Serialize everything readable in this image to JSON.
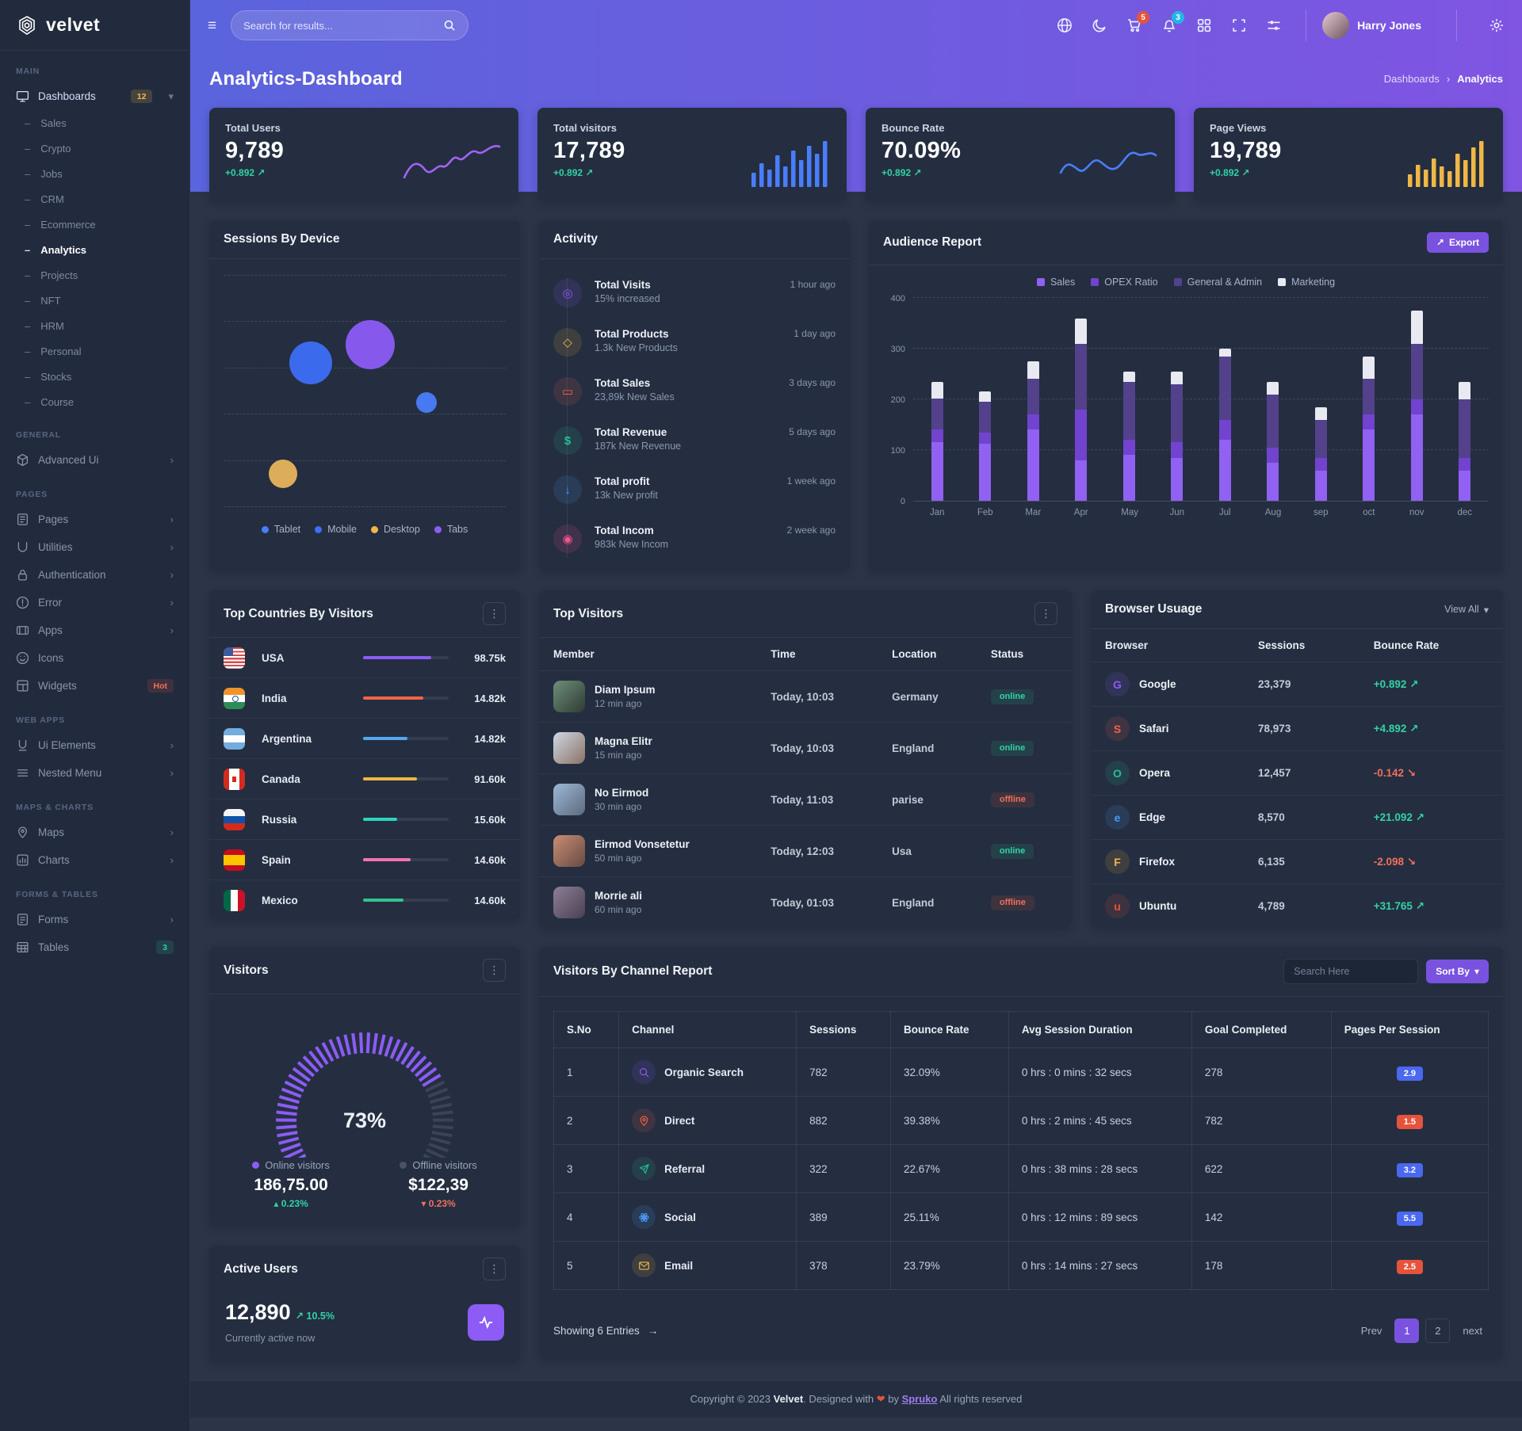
{
  "brand": {
    "name": "velvet"
  },
  "topbar": {
    "search_placeholder": "Search for results...",
    "cart_badge": "5",
    "bell_badge": "3",
    "user_name": "Harry Jones"
  },
  "page": {
    "title": "Analytics-Dashboard"
  },
  "breadcrumb": {
    "parent": "Dashboards",
    "current": "Analytics"
  },
  "sidebar": {
    "sections": [
      {
        "label": "MAIN",
        "items": [
          {
            "icon": "monitor",
            "label": "Dashboards",
            "badge": "12",
            "badge_variant": "warn",
            "chevron": "down",
            "active": true,
            "children": [
              "Sales",
              "Crypto",
              "Jobs",
              "CRM",
              "Ecommerce",
              "Analytics",
              "Projects",
              "NFT",
              "HRM",
              "Personal",
              "Stocks",
              "Course"
            ],
            "active_child": "Analytics"
          }
        ]
      },
      {
        "label": "GENERAL",
        "items": [
          {
            "icon": "box",
            "label": "Advanced Ui",
            "chevron": "right"
          }
        ]
      },
      {
        "label": "PAGES",
        "items": [
          {
            "icon": "file",
            "label": "Pages",
            "chevron": "right"
          },
          {
            "icon": "util",
            "label": "Utilities",
            "chevron": "right"
          },
          {
            "icon": "lock",
            "label": "Authentication",
            "chevron": "right"
          },
          {
            "icon": "error",
            "label": "Error",
            "chevron": "right"
          },
          {
            "icon": "apps",
            "label": "Apps",
            "chevron": "right"
          },
          {
            "icon": "smiley",
            "label": "Icons"
          },
          {
            "icon": "widget",
            "label": "Widgets",
            "badge": "Hot",
            "badge_variant": "danger"
          }
        ]
      },
      {
        "label": "WEB APPS",
        "items": [
          {
            "icon": "uline",
            "label": "Ui Elements",
            "chevron": "right"
          },
          {
            "icon": "menu3",
            "label": "Nested Menu",
            "chevron": "right"
          }
        ]
      },
      {
        "label": "MAPS & CHARTS",
        "items": [
          {
            "icon": "map",
            "label": "Maps",
            "chevron": "right"
          },
          {
            "icon": "chart",
            "label": "Charts",
            "chevron": "right"
          }
        ]
      },
      {
        "label": "FORMS & TABLES",
        "items": [
          {
            "icon": "form",
            "label": "Forms",
            "chevron": "right"
          },
          {
            "icon": "table",
            "label": "Tables",
            "badge": "3",
            "badge_variant": "success"
          }
        ]
      }
    ]
  },
  "stat_cards": [
    {
      "label": "Total Users",
      "value": "9,789",
      "delta": "+0.892",
      "spark": "line",
      "color": "#a263f5"
    },
    {
      "label": "Total visitors",
      "value": "17,789",
      "delta": "+0.892",
      "spark": "bars",
      "color": "#4a7dfc"
    },
    {
      "label": "Bounce Rate",
      "value": "70.09%",
      "delta": "+0.892",
      "spark": "line2",
      "color": "#4a7dfc"
    },
    {
      "label": "Page Views",
      "value": "19,789",
      "delta": "+0.892",
      "spark": "bars2",
      "color": "#f0b746"
    }
  ],
  "sessions": {
    "title": "Sessions By Device",
    "legend": [
      {
        "label": "Tablet",
        "color": "#4a7dfc"
      },
      {
        "label": "Mobile",
        "color": "#3d6ef5"
      },
      {
        "label": "Desktop",
        "color": "#f0b746"
      },
      {
        "label": "Tabs",
        "color": "#8c5cf5"
      }
    ],
    "bubbles": [
      {
        "series": "Mobile",
        "x": 31,
        "y": 38,
        "r": 27,
        "color": "#3d6ef5"
      },
      {
        "series": "Tabs",
        "x": 52,
        "y": 30,
        "r": 31,
        "color": "#8c5cf5"
      },
      {
        "series": "Tablet",
        "x": 72,
        "y": 55,
        "r": 13,
        "color": "#4a7dfc"
      },
      {
        "series": "Desktop",
        "x": 21,
        "y": 86,
        "r": 18,
        "color": "#e8b45c"
      }
    ]
  },
  "activity": {
    "title": "Activity",
    "items": [
      {
        "icon": "target",
        "glyph": "◎",
        "color": "#8c5cf5",
        "title": "Total Visits",
        "sub": "15% increased",
        "time": "1 hour ago"
      },
      {
        "icon": "box",
        "glyph": "◇",
        "color": "#f0b746",
        "title": "Total Products",
        "sub": "1.3k New Products",
        "time": "1 day ago"
      },
      {
        "icon": "card",
        "glyph": "▭",
        "color": "#f06548",
        "title": "Total Sales",
        "sub": "23,89k New Sales",
        "time": "3 days ago"
      },
      {
        "icon": "dollar",
        "glyph": "$",
        "color": "#26bf94",
        "title": "Total Revenue",
        "sub": "187k New Revenue",
        "time": "5 days ago"
      },
      {
        "icon": "download",
        "glyph": "↓",
        "color": "#4a9af5",
        "title": "Total profit",
        "sub": "13k New profit",
        "time": "1 week ago"
      },
      {
        "icon": "record",
        "glyph": "◉",
        "color": "#f5548e",
        "title": "Total Incom",
        "sub": "983k New Incom",
        "time": "2 week ago"
      }
    ]
  },
  "audience": {
    "title": "Audience Report",
    "export_label": "Export",
    "chart_data": {
      "type": "bar",
      "stacked": true,
      "categories": [
        "Jan",
        "Feb",
        "Mar",
        "Apr",
        "May",
        "Jun",
        "Jul",
        "Aug",
        "sep",
        "oct",
        "nov",
        "dec"
      ],
      "series": [
        {
          "name": "Sales",
          "color": "#9061f2",
          "values": [
            115,
            112,
            140,
            80,
            90,
            85,
            120,
            75,
            60,
            140,
            170,
            60
          ]
        },
        {
          "name": "OPEX Ratio",
          "color": "#7143cf",
          "values": [
            25,
            22,
            30,
            100,
            30,
            30,
            40,
            30,
            25,
            30,
            30,
            25
          ]
        },
        {
          "name": "General & Admin",
          "color": "#53418c",
          "values": [
            62,
            62,
            70,
            130,
            115,
            115,
            125,
            105,
            75,
            70,
            110,
            115
          ]
        },
        {
          "name": "Marketing",
          "color": "#e9e9f2",
          "values": [
            33,
            20,
            35,
            50,
            20,
            25,
            15,
            25,
            25,
            45,
            65,
            35
          ]
        }
      ],
      "ylim": [
        0,
        400
      ],
      "yticks": [
        0,
        100,
        200,
        300,
        400
      ],
      "grid": "dashed-horizontal",
      "legend_position": "top"
    }
  },
  "countries": {
    "title": "Top Countries By Visitors",
    "rows": [
      {
        "country": "USA",
        "flag": "usa",
        "value": "98.75k",
        "bar_pct": 80,
        "bar_color": "#8c5cf5"
      },
      {
        "country": "India",
        "flag": "india",
        "value": "14.82k",
        "bar_pct": 70,
        "bar_color": "#f06548"
      },
      {
        "country": "Argentina",
        "flag": "argentina",
        "value": "14.82k",
        "bar_pct": 52,
        "bar_color": "#53a8f0"
      },
      {
        "country": "Canada",
        "flag": "canada",
        "value": "91.60k",
        "bar_pct": 63,
        "bar_color": "#f0b746"
      },
      {
        "country": "Russia",
        "flag": "russia",
        "value": "15.60k",
        "bar_pct": 40,
        "bar_color": "#2dd4bf"
      },
      {
        "country": "Spain",
        "flag": "spain",
        "value": "14.60k",
        "bar_pct": 56,
        "bar_color": "#f472b6"
      },
      {
        "country": "Mexico",
        "flag": "mexico",
        "value": "14.60k",
        "bar_pct": 47,
        "bar_color": "#34c38f"
      }
    ]
  },
  "top_visitors": {
    "title": "Top Visitors",
    "headers": [
      "Member",
      "Time",
      "Location",
      "Status"
    ],
    "rows": [
      {
        "name": "Diam Ipsum",
        "ago": "12 min ago",
        "time": "Today, 10:03",
        "location": "Germany",
        "status": "online"
      },
      {
        "name": "Magna Elitr",
        "ago": "15 min ago",
        "time": "Today, 10:03",
        "location": "England",
        "status": "online"
      },
      {
        "name": "No Eirmod",
        "ago": "30 min ago",
        "time": "Today, 11:03",
        "location": "parise",
        "status": "offline"
      },
      {
        "name": "Eirmod Vonsetetur",
        "ago": "50 min ago",
        "time": "Today, 12:03",
        "location": "Usa",
        "status": "online"
      },
      {
        "name": "Morrie ali",
        "ago": "60 min ago",
        "time": "Today, 01:03",
        "location": "England",
        "status": "offline"
      }
    ]
  },
  "browser": {
    "title": "Browser Usuage",
    "view_all": "View All",
    "headers": [
      "Browser",
      "Sessions",
      "Bounce Rate"
    ],
    "rows": [
      {
        "name": "Google",
        "letter": "G",
        "color": "#8c5cf5",
        "sessions": "23,379",
        "bounce": "+0.892",
        "dir": "up"
      },
      {
        "name": "Safari",
        "letter": "S",
        "color": "#f06548",
        "sessions": "78,973",
        "bounce": "+4.892",
        "dir": "up"
      },
      {
        "name": "Opera",
        "letter": "O",
        "color": "#26bf94",
        "sessions": "12,457",
        "bounce": "-0.142",
        "dir": "down"
      },
      {
        "name": "Edge",
        "letter": "e",
        "color": "#4a9af5",
        "sessions": "8,570",
        "bounce": "+21.092",
        "dir": "up"
      },
      {
        "name": "Firefox",
        "letter": "F",
        "color": "#f0b746",
        "sessions": "6,135",
        "bounce": "-2.098",
        "dir": "down"
      },
      {
        "name": "Ubuntu",
        "letter": "u",
        "color": "#e6533c",
        "sessions": "4,789",
        "bounce": "+31.765",
        "dir": "up"
      }
    ]
  },
  "visitors_gauge": {
    "title": "Visitors",
    "percent": 73,
    "percent_label": "73%",
    "online": {
      "label": "Online visitors",
      "value": "186,75.00",
      "delta": "0.23%",
      "dir": "up",
      "dot_color": "#8c5cf5"
    },
    "offline": {
      "label": "Offline visitors",
      "value": "$122,39",
      "delta": "0.23%",
      "dir": "down",
      "dot_color": "#4a5268"
    }
  },
  "channel": {
    "title": "Visitors By Channel Report",
    "search_placeholder": "Search Here",
    "sort_label": "Sort By",
    "headers": [
      "S.No",
      "Channel",
      "Sessions",
      "Bounce Rate",
      "Avg Session Duration",
      "Goal Completed",
      "Pages Per Session"
    ],
    "rows": [
      {
        "no": "1",
        "channel": "Organic Search",
        "icon": "search",
        "color": "#8c5cf5",
        "sessions": "782",
        "bounce": "32.09%",
        "duration": "0 hrs : 0 mins : 32 secs",
        "goal": "278",
        "pps": "2.9",
        "pps_variant": "blue"
      },
      {
        "no": "2",
        "channel": "Direct",
        "icon": "pin",
        "color": "#f06548",
        "sessions": "882",
        "bounce": "39.38%",
        "duration": "0 hrs : 2 mins : 45 secs",
        "goal": "782",
        "pps": "1.5",
        "pps_variant": "red"
      },
      {
        "no": "3",
        "channel": "Referral",
        "icon": "plane",
        "color": "#26bf94",
        "sessions": "322",
        "bounce": "22.67%",
        "duration": "0 hrs : 38 mins : 28 secs",
        "goal": "622",
        "pps": "3.2",
        "pps_variant": "blue"
      },
      {
        "no": "4",
        "channel": "Social",
        "icon": "atom",
        "color": "#4a9af5",
        "sessions": "389",
        "bounce": "25.11%",
        "duration": "0 hrs : 12 mins : 89 secs",
        "goal": "142",
        "pps": "5.5",
        "pps_variant": "blue"
      },
      {
        "no": "5",
        "channel": "Email",
        "icon": "mail",
        "color": "#f0b746",
        "sessions": "378",
        "bounce": "23.79%",
        "duration": "0 hrs : 14 mins : 27 secs",
        "goal": "178",
        "pps": "2.5",
        "pps_variant": "red"
      }
    ],
    "showing": "Showing 6 Entries",
    "prev_label": "Prev",
    "pages": [
      "1",
      "2"
    ],
    "active_page": "1",
    "next_label": "next"
  },
  "active_users": {
    "title": "Active Users",
    "value": "12,890",
    "delta": "10.5%",
    "sub": "Currently active now"
  },
  "footer": {
    "prefix": "Copyright © 2023",
    "brand": "Velvet",
    "middle": ". Designed with",
    "by": "by",
    "link": "Spruko",
    "suffix": "All rights reserved"
  }
}
